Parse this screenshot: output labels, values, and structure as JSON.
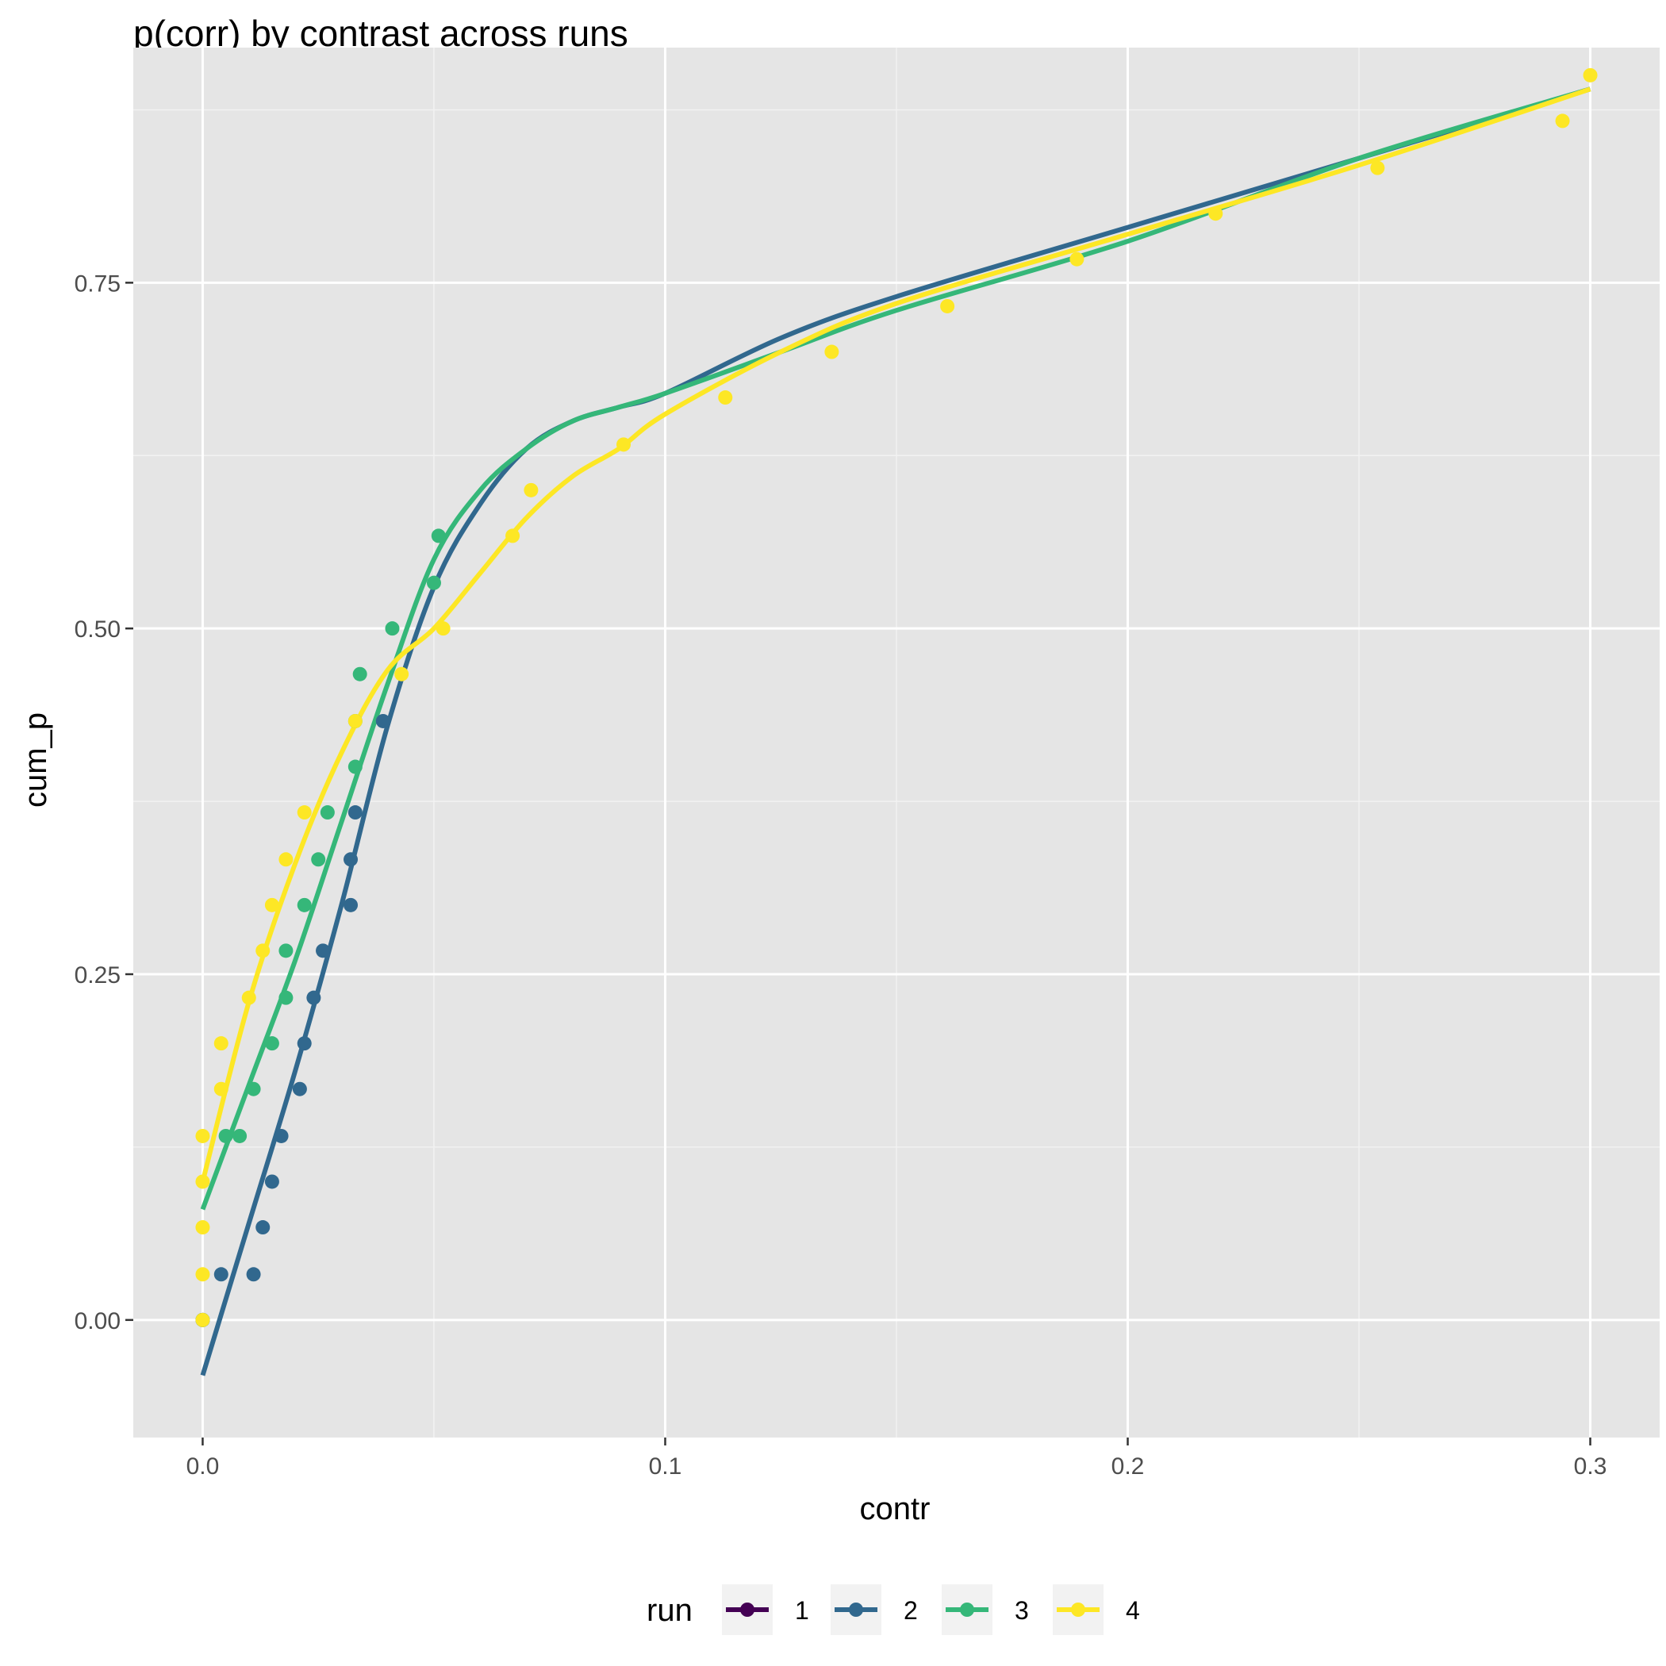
{
  "chart_data": {
    "type": "scatter",
    "title": "p(corr) by contrast across runs",
    "xlabel": "contr",
    "ylabel": "cum_p",
    "xlim": [
      -0.015,
      0.315
    ],
    "ylim": [
      -0.085,
      0.92
    ],
    "x_ticks": [
      0.0,
      0.1,
      0.2,
      0.3
    ],
    "x_tick_labels": [
      "0.0",
      "0.1",
      "0.2",
      "0.3"
    ],
    "y_ticks": [
      0.0,
      0.25,
      0.5,
      0.75
    ],
    "y_tick_labels": [
      "0.00",
      "0.25",
      "0.50",
      "0.75"
    ],
    "grid": true,
    "background": "#e5e5e5",
    "legend": {
      "title": "run",
      "position": "bottom"
    },
    "series": [
      {
        "name": "1",
        "color": "#440154",
        "points": [
          [
            0.0,
            0.0
          ]
        ],
        "smooth": []
      },
      {
        "name": "2",
        "color": "#31688e",
        "points": [
          [
            0.0,
            0.0
          ],
          [
            0.004,
            0.033
          ],
          [
            0.011,
            0.033
          ],
          [
            0.013,
            0.067
          ],
          [
            0.015,
            0.1
          ],
          [
            0.017,
            0.133
          ],
          [
            0.021,
            0.167
          ],
          [
            0.022,
            0.2
          ],
          [
            0.024,
            0.233
          ],
          [
            0.026,
            0.267
          ],
          [
            0.032,
            0.3
          ],
          [
            0.032,
            0.333
          ],
          [
            0.033,
            0.367
          ],
          [
            0.039,
            0.433
          ]
        ],
        "smooth": [
          [
            0.0,
            -0.04
          ],
          [
            0.01,
            0.07
          ],
          [
            0.02,
            0.18
          ],
          [
            0.03,
            0.3
          ],
          [
            0.04,
            0.43
          ],
          [
            0.05,
            0.53
          ],
          [
            0.06,
            0.59
          ],
          [
            0.07,
            0.63
          ],
          [
            0.08,
            0.65
          ],
          [
            0.09,
            0.66
          ],
          [
            0.1,
            0.67
          ],
          [
            0.125,
            0.71
          ],
          [
            0.15,
            0.74
          ],
          [
            0.2,
            0.79
          ],
          [
            0.25,
            0.84
          ],
          [
            0.3,
            0.89
          ]
        ]
      },
      {
        "name": "3",
        "color": "#35b779",
        "points": [
          [
            0.0,
            0.0
          ],
          [
            0.005,
            0.133
          ],
          [
            0.008,
            0.133
          ],
          [
            0.011,
            0.167
          ],
          [
            0.015,
            0.2
          ],
          [
            0.018,
            0.233
          ],
          [
            0.018,
            0.267
          ],
          [
            0.022,
            0.3
          ],
          [
            0.025,
            0.333
          ],
          [
            0.027,
            0.367
          ],
          [
            0.033,
            0.4
          ],
          [
            0.033,
            0.433
          ],
          [
            0.034,
            0.467
          ],
          [
            0.041,
            0.5
          ],
          [
            0.05,
            0.533
          ],
          [
            0.051,
            0.567
          ]
        ],
        "smooth": [
          [
            0.0,
            0.08
          ],
          [
            0.01,
            0.17
          ],
          [
            0.02,
            0.26
          ],
          [
            0.03,
            0.36
          ],
          [
            0.04,
            0.46
          ],
          [
            0.05,
            0.55
          ],
          [
            0.06,
            0.6
          ],
          [
            0.07,
            0.63
          ],
          [
            0.08,
            0.65
          ],
          [
            0.09,
            0.66
          ],
          [
            0.1,
            0.67
          ],
          [
            0.125,
            0.7
          ],
          [
            0.15,
            0.73
          ],
          [
            0.2,
            0.78
          ],
          [
            0.25,
            0.84
          ],
          [
            0.3,
            0.89
          ]
        ]
      },
      {
        "name": "4",
        "color": "#fde725",
        "points": [
          [
            0.0,
            0.0
          ],
          [
            0.0,
            0.033
          ],
          [
            0.0,
            0.067
          ],
          [
            0.0,
            0.1
          ],
          [
            0.0,
            0.133
          ],
          [
            0.004,
            0.167
          ],
          [
            0.004,
            0.2
          ],
          [
            0.01,
            0.233
          ],
          [
            0.013,
            0.267
          ],
          [
            0.015,
            0.3
          ],
          [
            0.018,
            0.333
          ],
          [
            0.022,
            0.367
          ],
          [
            0.033,
            0.433
          ],
          [
            0.043,
            0.467
          ],
          [
            0.052,
            0.5
          ],
          [
            0.067,
            0.567
          ],
          [
            0.071,
            0.6
          ],
          [
            0.091,
            0.633
          ],
          [
            0.113,
            0.667
          ],
          [
            0.136,
            0.7
          ],
          [
            0.161,
            0.733
          ],
          [
            0.189,
            0.767
          ],
          [
            0.219,
            0.8
          ],
          [
            0.254,
            0.833
          ],
          [
            0.294,
            0.867
          ],
          [
            0.3,
            0.9
          ]
        ],
        "smooth": [
          [
            0.0,
            0.1
          ],
          [
            0.01,
            0.23
          ],
          [
            0.02,
            0.33
          ],
          [
            0.03,
            0.41
          ],
          [
            0.04,
            0.47
          ],
          [
            0.05,
            0.5
          ],
          [
            0.06,
            0.54
          ],
          [
            0.07,
            0.58
          ],
          [
            0.08,
            0.61
          ],
          [
            0.09,
            0.63
          ],
          [
            0.1,
            0.655
          ],
          [
            0.125,
            0.7
          ],
          [
            0.15,
            0.735
          ],
          [
            0.2,
            0.785
          ],
          [
            0.25,
            0.835
          ],
          [
            0.3,
            0.89
          ]
        ]
      }
    ]
  }
}
